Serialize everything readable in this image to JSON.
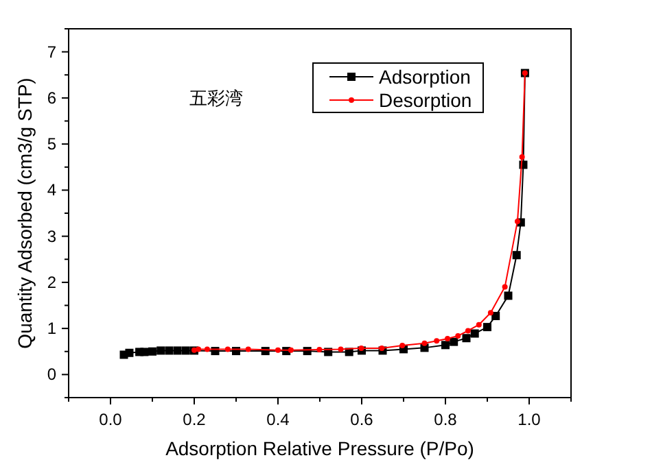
{
  "chart_data": {
    "type": "line",
    "xlabel": "Adsorption Relative Pressure (P/Po)",
    "ylabel": "Quantity Adsorbed (cm3/g STP)",
    "annotations": [
      "五彩湾"
    ],
    "xlim": [
      -0.1,
      1.1
    ],
    "ylim": [
      -0.5,
      7.5
    ],
    "xticks": [
      {
        "value": -0.1,
        "label": null
      },
      {
        "value": 0,
        "label": "0.0"
      },
      {
        "value": 0.1,
        "label": null
      },
      0.2,
      {
        "value": 0.3,
        "label": null
      },
      0.4,
      {
        "value": 0.5,
        "label": null
      },
      0.6,
      {
        "value": 0.7,
        "label": null
      },
      0.8,
      {
        "value": 0.9,
        "label": null
      },
      {
        "value": 1,
        "label": "1.0"
      },
      {
        "value": 1.1,
        "label": null
      }
    ],
    "yticks": [
      {
        "value": -0.5,
        "label": null
      },
      0,
      {
        "value": 0.5,
        "label": null
      },
      1,
      {
        "value": 1.5,
        "label": null
      },
      2,
      {
        "value": 2.5,
        "label": null
      },
      3,
      {
        "value": 3.5,
        "label": null
      },
      4,
      {
        "value": 4.5,
        "label": null
      },
      5,
      {
        "value": 5.5,
        "label": null
      },
      6,
      {
        "value": 6.5,
        "label": null
      },
      7,
      {
        "value": 7.5,
        "label": null
      }
    ],
    "grid": false,
    "legend": "top right",
    "line_style": "solid",
    "series": [
      {
        "name": "Adsorption",
        "color": "#000000",
        "marker": "square",
        "x": [
          0.032,
          0.045,
          0.069,
          0.081,
          0.1,
          0.12,
          0.14,
          0.16,
          0.18,
          0.2,
          0.25,
          0.3,
          0.37,
          0.42,
          0.47,
          0.52,
          0.57,
          0.6,
          0.65,
          0.7,
          0.75,
          0.8,
          0.82,
          0.85,
          0.87,
          0.9,
          0.92,
          0.95,
          0.97,
          0.98,
          0.986,
          0.99
        ],
        "values": [
          0.43,
          0.47,
          0.49,
          0.49,
          0.5,
          0.52,
          0.52,
          0.52,
          0.52,
          0.52,
          0.51,
          0.51,
          0.51,
          0.51,
          0.51,
          0.49,
          0.49,
          0.52,
          0.52,
          0.55,
          0.58,
          0.64,
          0.71,
          0.79,
          0.89,
          1.03,
          1.27,
          1.71,
          2.59,
          3.3,
          4.55,
          6.54
        ]
      },
      {
        "name": "Desorption",
        "color": "#ff0000",
        "marker": "circle",
        "x": [
          0.99,
          0.983,
          0.972,
          0.942,
          0.908,
          0.88,
          0.854,
          0.83,
          0.805,
          0.779,
          0.75,
          0.697,
          0.648,
          0.599,
          0.55,
          0.499,
          0.431,
          0.4,
          0.329,
          0.28,
          0.231,
          0.21,
          0.2
        ],
        "values": [
          6.54,
          4.72,
          3.32,
          1.9,
          1.34,
          1.08,
          0.95,
          0.84,
          0.78,
          0.73,
          0.68,
          0.63,
          0.57,
          0.57,
          0.55,
          0.54,
          0.53,
          0.53,
          0.55,
          0.55,
          0.55,
          0.55,
          0.53
        ]
      }
    ]
  }
}
